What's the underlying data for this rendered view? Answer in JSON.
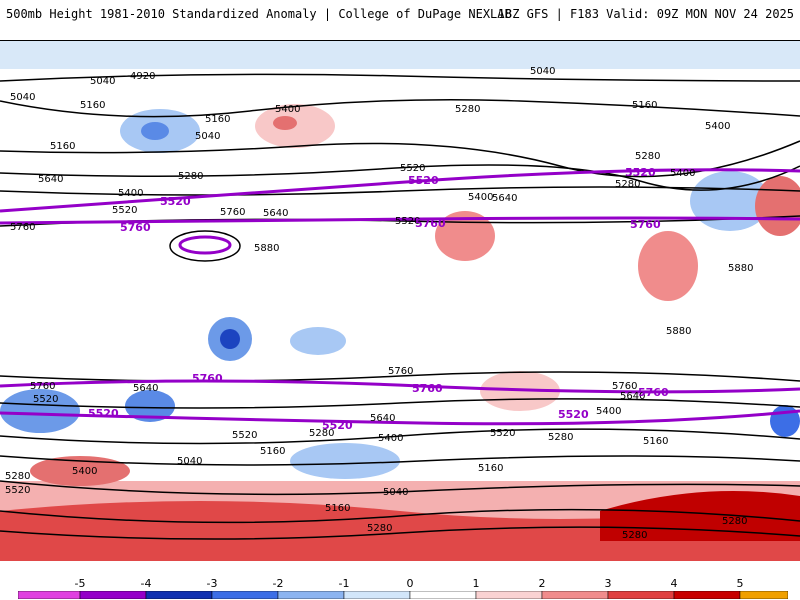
{
  "header": {
    "title_left": "500mb Height 1981-2010 Standardized Anomaly | College of DuPage NEXLAB",
    "title_right": "18Z GFS | F183 Valid: 09Z MON NOV 24 2025"
  },
  "map": {
    "contour_labels_black": [
      "4920",
      "5040",
      "5040",
      "5040",
      "5160",
      "5160",
      "5160",
      "5280",
      "5280",
      "5280",
      "5400",
      "5400",
      "5400",
      "5520",
      "5520",
      "5640",
      "5640",
      "5760",
      "5760",
      "5880",
      "5880",
      "5880",
      "5760",
      "5640",
      "5520",
      "5400",
      "5280",
      "5160",
      "5040",
      "5520",
      "5400",
      "5640",
      "5520",
      "5280",
      "5400",
      "5160",
      "5160",
      "5040",
      "5160",
      "5280",
      "5280",
      "5280",
      "5280",
      "5400",
      "5520",
      "5640",
      "5760",
      "5760",
      "5640",
      "5520",
      "5400",
      "5280",
      "5160",
      "5040"
    ],
    "contour_labels_purple": [
      "5520",
      "5760",
      "5520",
      "5760",
      "5760",
      "5520",
      "5520",
      "5760",
      "5520",
      "5760",
      "5760",
      "5520"
    ]
  },
  "colorbar": {
    "ticks": [
      "-5",
      "-4",
      "-3",
      "-2",
      "-1",
      "0",
      "1",
      "2",
      "3",
      "4",
      "5"
    ],
    "colors": [
      "#e040e0",
      "#9400c8",
      "#1030b0",
      "#3c6ee6",
      "#8cb4f0",
      "#d2e6fa",
      "#ffffff",
      "#fad2d2",
      "#f08c8c",
      "#e04040",
      "#c80000",
      "#f0a000"
    ]
  }
}
